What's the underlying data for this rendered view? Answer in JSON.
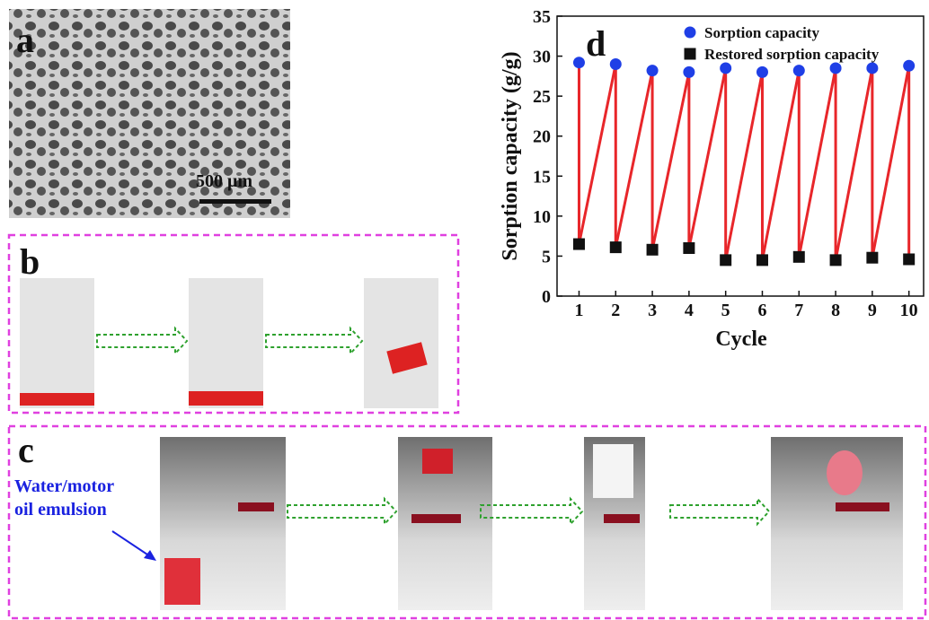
{
  "panel_labels": [
    "a",
    "b",
    "c"
  ],
  "scale_bar": "500 μm",
  "annotation": [
    "Water/motor",
    "oil emulsion"
  ],
  "chart_data": {
    "type": "line",
    "panel_label": "d",
    "x_label": "Cycle",
    "y_label": "Sorption capacity (g/g)",
    "x": [
      1,
      2,
      3,
      4,
      5,
      6,
      7,
      8,
      9,
      10
    ],
    "series": [
      {
        "name": "Sorption capacity",
        "color": "#1f3fe6",
        "marker": "circle",
        "values": [
          29.2,
          29.0,
          28.2,
          28.0,
          28.5,
          28.0,
          28.2,
          28.5,
          28.5,
          28.8
        ]
      },
      {
        "name": "Restored sorption capacity",
        "color": "#111111",
        "marker": "square",
        "values": [
          6.5,
          6.1,
          5.8,
          6.0,
          4.5,
          4.5,
          4.9,
          4.5,
          4.8,
          4.6
        ]
      }
    ],
    "line_color": "#e8262a",
    "xlim": [
      0.4,
      10.4
    ],
    "xticks": [
      1,
      2,
      3,
      4,
      5,
      6,
      7,
      8,
      9,
      10
    ],
    "ylim": [
      0,
      35
    ],
    "yticks": [
      0,
      5,
      10,
      15,
      20,
      25,
      30,
      35
    ]
  }
}
